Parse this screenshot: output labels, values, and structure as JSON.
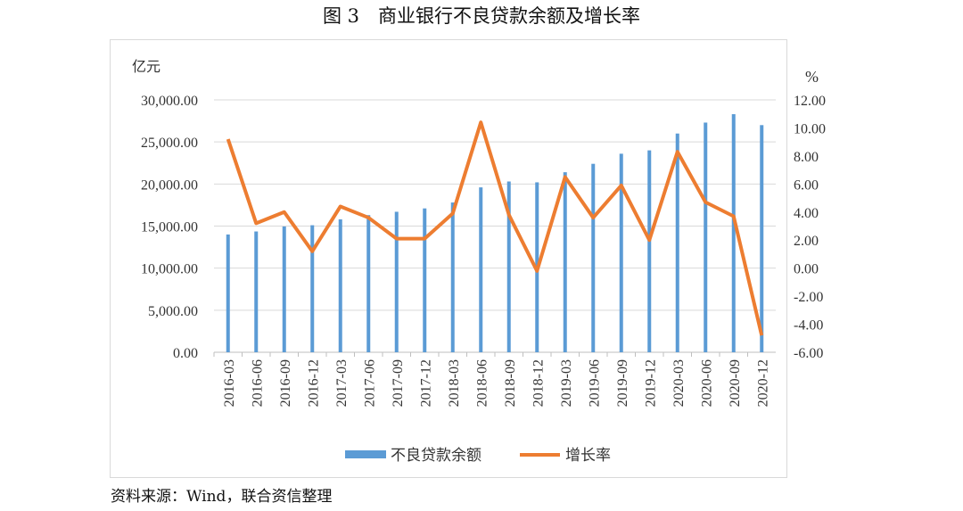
{
  "title": "图 3　商业银行不良贷款余额及增长率",
  "source": "资料来源：Wind，联合资信整理",
  "chart_data": {
    "type": "bar+line",
    "title": "图 3　商业银行不良贷款余额及增长率",
    "categories": [
      "2016-03",
      "2016-06",
      "2016-09",
      "2016-12",
      "2017-03",
      "2017-06",
      "2017-09",
      "2017-12",
      "2018-03",
      "2018-06",
      "2018-09",
      "2018-12",
      "2019-03",
      "2019-06",
      "2019-09",
      "2019-12",
      "2020-03",
      "2020-06",
      "2020-09",
      "2020-12"
    ],
    "left_axis": {
      "unit": "亿元",
      "ylim": [
        0,
        30000
      ],
      "ticks": [
        "0.00",
        "5,000.00",
        "10,000.00",
        "15,000.00",
        "20,000.00",
        "25,000.00",
        "30,000.00"
      ]
    },
    "right_axis": {
      "unit": "%",
      "ylim": [
        -6,
        12
      ],
      "ticks": [
        "-6.00",
        "-4.00",
        "-2.00",
        "0.00",
        "2.00",
        "4.00",
        "6.00",
        "8.00",
        "10.00",
        "12.00"
      ]
    },
    "grid": true,
    "legend_position": "bottom",
    "series": [
      {
        "name": "不良贷款余额",
        "type": "bar",
        "axis": "left",
        "color": "#5b9bd5",
        "values": [
          14000,
          14360,
          14950,
          15100,
          15800,
          16300,
          16700,
          17100,
          17800,
          19600,
          20300,
          20200,
          21400,
          22400,
          23600,
          24000,
          26000,
          27300,
          28300,
          27000
        ]
      },
      {
        "name": "增长率",
        "type": "line",
        "axis": "right",
        "color": "#ed7d31",
        "values": [
          9.2,
          3.2,
          4.0,
          1.2,
          4.4,
          3.6,
          2.1,
          2.1,
          3.9,
          10.4,
          3.8,
          -0.2,
          6.5,
          3.6,
          5.9,
          2.0,
          8.3,
          4.7,
          3.7,
          -4.8
        ]
      }
    ]
  }
}
